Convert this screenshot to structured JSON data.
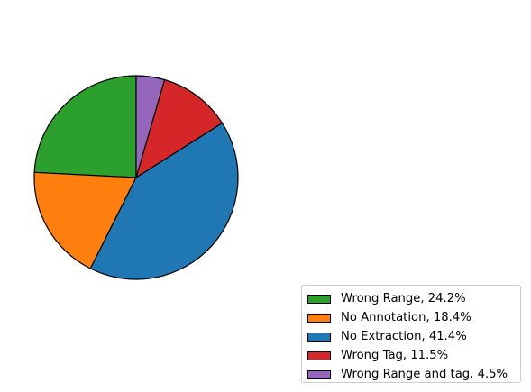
{
  "chart_data": {
    "type": "pie",
    "title": "",
    "start_angle_deg": 90,
    "direction": "counterclockwise",
    "slices": [
      {
        "label": "Wrong Range",
        "value": 24.2,
        "legend_text": "Wrong Range, 24.2%",
        "color": "#2ca02c"
      },
      {
        "label": "No Annotation",
        "value": 18.4,
        "legend_text": "No Annotation, 18.4%",
        "color": "#ff7f0e"
      },
      {
        "label": "No Extraction",
        "value": 41.4,
        "legend_text": "No Extraction, 41.4%",
        "color": "#1f77b4"
      },
      {
        "label": "Wrong Tag",
        "value": 11.5,
        "legend_text": "Wrong Tag, 11.5%",
        "color": "#d62728"
      },
      {
        "label": "Wrong Range and tag",
        "value": 4.5,
        "legend_text": "Wrong Range and tag, 4.5%",
        "color": "#9467bd"
      }
    ],
    "legend": {
      "placement": "lower-right"
    },
    "edge_color": "#000000"
  }
}
